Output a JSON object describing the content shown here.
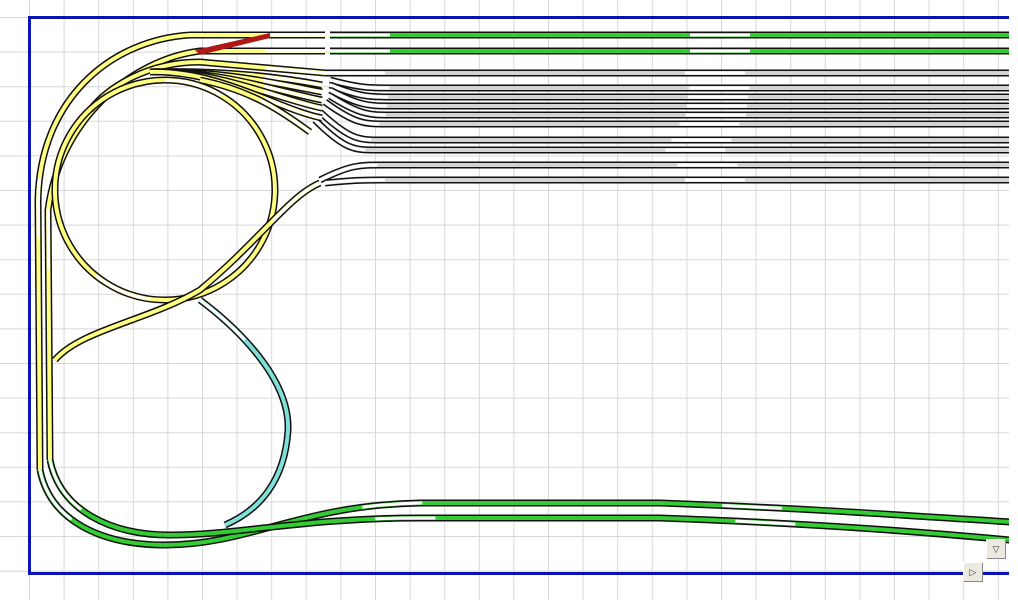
{
  "colors": {
    "background": "#ffffff",
    "grid": "#d8d8d8",
    "board_border": "#0a14b4",
    "track_outline": "#111111",
    "track_green": "#33cc33",
    "track_yellow": "#ffff80",
    "track_grey": "#d4d4d4",
    "track_cyan": "#7fe0d8",
    "track_red": "#b01818",
    "turnout_grey": "#909090",
    "joint": "#ffffff"
  },
  "icons": {
    "scroll_down": "triangle-down-icon",
    "scroll_right": "triangle-right-icon"
  },
  "scroll": {
    "down_glyph": "▽",
    "right_glyph": "▷"
  }
}
